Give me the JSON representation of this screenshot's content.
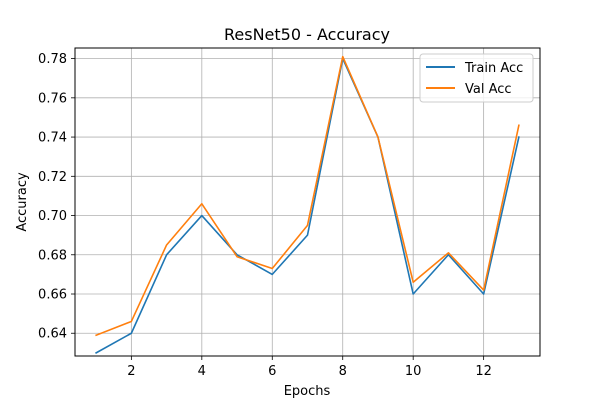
{
  "chart_data": {
    "type": "line",
    "title": "ResNet50 - Accuracy",
    "xlabel": "Epochs",
    "ylabel": "Accuracy",
    "x": [
      1,
      2,
      3,
      4,
      5,
      6,
      7,
      8,
      9,
      10,
      11,
      12,
      13
    ],
    "series": [
      {
        "name": "Train Acc",
        "color": "#1f77b4",
        "values": [
          0.63,
          0.64,
          0.68,
          0.7,
          0.68,
          0.67,
          0.69,
          0.78,
          0.74,
          0.66,
          0.68,
          0.66,
          0.74
        ]
      },
      {
        "name": "Val Acc",
        "color": "#ff7f0e",
        "values": [
          0.639,
          0.646,
          0.685,
          0.706,
          0.679,
          0.673,
          0.695,
          0.781,
          0.74,
          0.666,
          0.681,
          0.662,
          0.746
        ]
      }
    ],
    "xlim": [
      0.4,
      13.6
    ],
    "ylim": [
      0.6284,
      0.7854
    ],
    "xticks": [
      2,
      4,
      6,
      8,
      10,
      12
    ],
    "xtick_labels": [
      "2",
      "4",
      "6",
      "8",
      "10",
      "12"
    ],
    "yticks": [
      0.64,
      0.66,
      0.68,
      0.7,
      0.72,
      0.74,
      0.76,
      0.78
    ],
    "ytick_labels": [
      "0.64",
      "0.66",
      "0.68",
      "0.70",
      "0.72",
      "0.74",
      "0.76",
      "0.78"
    ],
    "grid": true,
    "legend_position": "top-right"
  }
}
